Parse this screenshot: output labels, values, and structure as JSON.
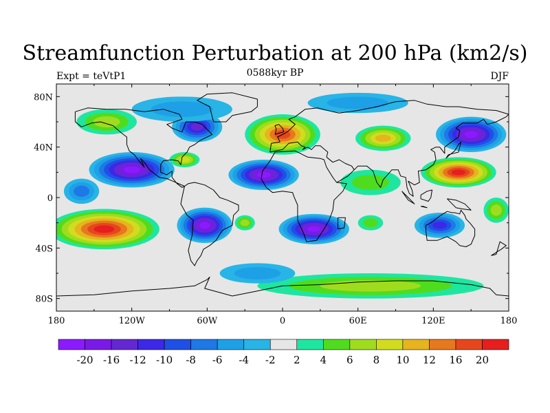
{
  "header": {
    "title": "Streamfunction Perturbation at 200 hPa (km2/s)",
    "left": "Expt = teVtP1",
    "center": "0588kyr BP",
    "right": "DJF"
  },
  "map": {
    "lon_range": [
      -180,
      180
    ],
    "lat_range": [
      -90,
      90
    ],
    "x_ticks": [
      {
        "value": -180,
        "label": "180"
      },
      {
        "value": -120,
        "label": "120W"
      },
      {
        "value": -60,
        "label": "60W"
      },
      {
        "value": 0,
        "label": "0"
      },
      {
        "value": 60,
        "label": "60E"
      },
      {
        "value": 120,
        "label": "120E"
      },
      {
        "value": 180,
        "label": "180"
      }
    ],
    "y_ticks": [
      {
        "value": 80,
        "label": "80N"
      },
      {
        "value": 40,
        "label": "40N"
      },
      {
        "value": 0,
        "label": "0"
      },
      {
        "value": -40,
        "label": "40S"
      },
      {
        "value": -80,
        "label": "80S"
      }
    ],
    "background_color": "#e6e6e6",
    "coastline_color": "#000000",
    "features": [
      {
        "lon": -120,
        "lat": 22,
        "value": -22,
        "rx": 34,
        "ry": 14
      },
      {
        "lon": -142,
        "lat": -25,
        "value": 22,
        "rx": 44,
        "ry": 16
      },
      {
        "lon": -62,
        "lat": -22,
        "value": -22,
        "rx": 22,
        "ry": 14
      },
      {
        "lon": -68,
        "lat": 56,
        "value": -12,
        "rx": 20,
        "ry": 12
      },
      {
        "lon": -78,
        "lat": 30,
        "value": 8,
        "rx": 12,
        "ry": 6
      },
      {
        "lon": -15,
        "lat": 18,
        "value": -22,
        "rx": 28,
        "ry": 12
      },
      {
        "lon": 0,
        "lat": 50,
        "value": 16,
        "rx": 30,
        "ry": 16
      },
      {
        "lon": 25,
        "lat": -25,
        "value": -22,
        "rx": 28,
        "ry": 12
      },
      {
        "lon": 80,
        "lat": 47,
        "value": 10,
        "rx": 22,
        "ry": 10
      },
      {
        "lon": 150,
        "lat": 50,
        "value": -20,
        "rx": 28,
        "ry": 14
      },
      {
        "lon": 140,
        "lat": 20,
        "value": 22,
        "rx": 30,
        "ry": 12
      },
      {
        "lon": 125,
        "lat": -22,
        "value": -10,
        "rx": 20,
        "ry": 10
      },
      {
        "lon": 70,
        "lat": 12,
        "value": 4,
        "rx": 24,
        "ry": 10
      },
      {
        "lon": -30,
        "lat": -20,
        "value": 6,
        "rx": 8,
        "ry": 6
      },
      {
        "lon": 70,
        "lat": -20,
        "value": 4,
        "rx": 10,
        "ry": 6
      },
      {
        "lon": 70,
        "lat": -70,
        "value": 6,
        "rx": 90,
        "ry": 10
      },
      {
        "lon": -20,
        "lat": -60,
        "value": -4,
        "rx": 30,
        "ry": 8
      },
      {
        "lon": -80,
        "lat": 70,
        "value": -4,
        "rx": 40,
        "ry": 10
      },
      {
        "lon": 60,
        "lat": 75,
        "value": -4,
        "rx": 40,
        "ry": 8
      },
      {
        "lon": -140,
        "lat": 60,
        "value": 6,
        "rx": 24,
        "ry": 10
      },
      {
        "lon": -160,
        "lat": 5,
        "value": -6,
        "rx": 14,
        "ry": 10
      },
      {
        "lon": 170,
        "lat": -10,
        "value": 6,
        "rx": 10,
        "ry": 10
      }
    ]
  },
  "colorbar": {
    "colors": [
      "#8c1aff",
      "#7a1ae6",
      "#6428d2",
      "#3c28e6",
      "#1e50e6",
      "#1e78e6",
      "#1ea0e6",
      "#28b4e6",
      "#e6e6e6",
      "#1ee6a0",
      "#50dc1e",
      "#a0dc1e",
      "#d2dc1e",
      "#e6b41e",
      "#e6781e",
      "#e6461e",
      "#e61e1e"
    ],
    "labels": [
      "-20",
      "-16",
      "-12",
      "-10",
      "-8",
      "-6",
      "-4",
      "-2",
      "2",
      "4",
      "6",
      "8",
      "10",
      "12",
      "16",
      "20"
    ]
  }
}
